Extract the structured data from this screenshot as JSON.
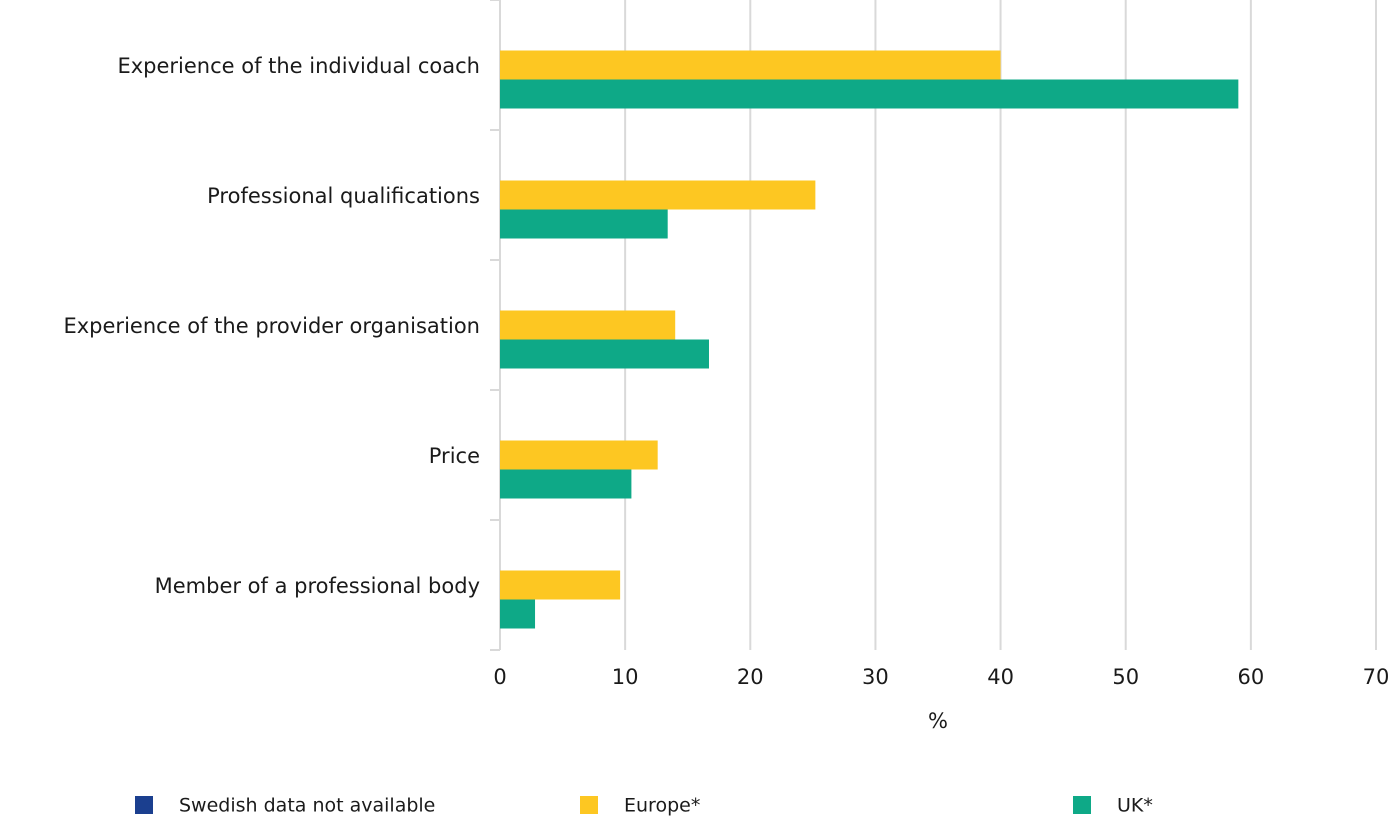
{
  "chart_data": {
    "type": "hbar",
    "categories": [
      "Experience of the individual coach",
      "Professional qualifications",
      "Experience of the provider organisation",
      "Price",
      "Member of a professional body"
    ],
    "series": [
      {
        "name": "Swedish data not available",
        "color": "#1b3f8f",
        "values": [
          null,
          null,
          null,
          null,
          null
        ]
      },
      {
        "name": "Europe*",
        "color": "#fdc722",
        "values": [
          40,
          25.2,
          14,
          12.6,
          9.6
        ]
      },
      {
        "name": "UK*",
        "color": "#0ea987",
        "values": [
          59,
          13.4,
          16.7,
          10.5,
          2.8
        ]
      }
    ],
    "xlim": [
      0,
      70
    ],
    "xticks": [
      0,
      10,
      20,
      30,
      40,
      50,
      60,
      70
    ],
    "xlabel": "%",
    "grid": true,
    "legend": "bottom"
  }
}
